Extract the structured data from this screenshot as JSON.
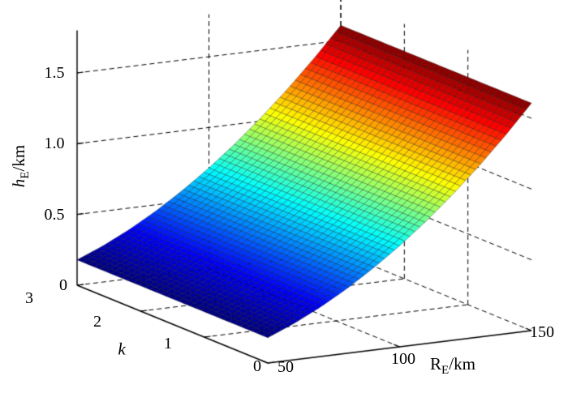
{
  "chart_data": {
    "type": "surface",
    "title": "",
    "grid": "dashed",
    "legend": "none",
    "colormap": "jet",
    "colors": {
      "background": "#ffffff",
      "grid_line": "#000000",
      "axis_line": "#000000"
    },
    "x_axis": {
      "label_var": "R",
      "label_sub": "E",
      "label_unit": "/km",
      "range": [
        50,
        150
      ],
      "ticks": [
        50,
        100,
        150
      ],
      "tick_labels": [
        "50",
        "100",
        "150"
      ]
    },
    "y_axis": {
      "label_var": "k",
      "range": [
        0,
        3
      ],
      "ticks": [
        0,
        1,
        2,
        3
      ],
      "tick_labels": [
        "3",
        "2",
        "1",
        "0"
      ]
    },
    "z_axis": {
      "label_var": "h",
      "label_sub": "E",
      "label_unit": "/km",
      "range": [
        0,
        1.5
      ],
      "ticks": [
        0,
        0.5,
        1,
        1.5
      ],
      "tick_labels": [
        "0",
        "0.5",
        "1.0",
        "1.5"
      ]
    },
    "surface": {
      "r_values": [
        50,
        60,
        70,
        80,
        90,
        100,
        110,
        120,
        130,
        140,
        150
      ],
      "k_values": [
        0,
        0.5,
        1,
        1.5,
        2,
        2.5,
        3
      ],
      "z_km": [
        [
          0.179,
          0.257,
          0.35,
          0.457,
          0.579,
          0.714,
          0.864,
          1.029,
          1.207,
          1.4,
          1.607
        ],
        [
          0.179,
          0.257,
          0.35,
          0.457,
          0.579,
          0.714,
          0.864,
          1.029,
          1.207,
          1.4,
          1.607
        ],
        [
          0.179,
          0.257,
          0.35,
          0.457,
          0.579,
          0.714,
          0.864,
          1.029,
          1.207,
          1.4,
          1.607
        ],
        [
          0.179,
          0.257,
          0.35,
          0.457,
          0.579,
          0.714,
          0.864,
          1.029,
          1.207,
          1.4,
          1.607
        ],
        [
          0.179,
          0.257,
          0.35,
          0.457,
          0.579,
          0.714,
          0.864,
          1.029,
          1.207,
          1.4,
          1.607
        ],
        [
          0.179,
          0.257,
          0.35,
          0.457,
          0.579,
          0.714,
          0.864,
          1.029,
          1.207,
          1.4,
          1.607
        ],
        [
          0.179,
          0.257,
          0.35,
          0.457,
          0.579,
          0.714,
          0.864,
          1.029,
          1.207,
          1.4,
          1.607
        ]
      ],
      "z_min": 0.179,
      "z_max": 1.607
    }
  }
}
